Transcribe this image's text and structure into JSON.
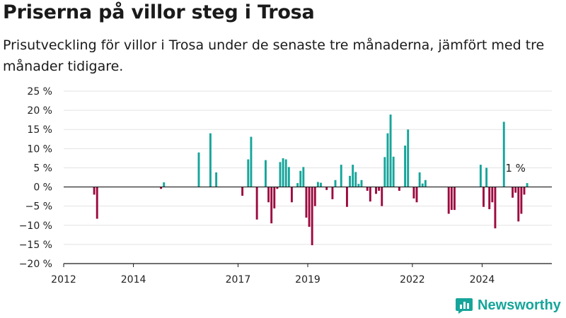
{
  "header": {
    "title": "Priserna på villor steg i Trosa",
    "subtitle": "Prisutveckling för villor i Trosa under de senaste tre månaderna, jämfört med tre månader tidigare."
  },
  "brand": {
    "name": "Newsworthy",
    "icon": "newsworthy-logo-icon",
    "color": "#16a59a"
  },
  "chart_data": {
    "type": "bar",
    "title": "Priserna på villor steg i Trosa",
    "subtitle": "Prisutveckling för villor i Trosa under de senaste tre månaderna, jämfört med tre månader tidigare.",
    "xlabel": "",
    "ylabel": "",
    "unit": "%",
    "ylim": [
      -20,
      25
    ],
    "xlim": [
      "2012-01",
      "2025-12"
    ],
    "y_ticks": [
      {
        "value": 25,
        "label": "25 %"
      },
      {
        "value": 20,
        "label": "20 %"
      },
      {
        "value": 15,
        "label": "15 %"
      },
      {
        "value": 10,
        "label": "10 %"
      },
      {
        "value": 5,
        "label": "5 %"
      },
      {
        "value": 0,
        "label": "0 %"
      },
      {
        "value": -5,
        "label": "−5 %"
      },
      {
        "value": -10,
        "label": "−10 %"
      },
      {
        "value": -15,
        "label": "−15 %"
      },
      {
        "value": -20,
        "label": "−20 %"
      }
    ],
    "x_ticks": [
      {
        "value": "2012-01",
        "label": "2012"
      },
      {
        "value": "2014-01",
        "label": "2014"
      },
      {
        "value": "2017-01",
        "label": "2017"
      },
      {
        "value": "2019-01",
        "label": "2019"
      },
      {
        "value": "2022-01",
        "label": "2022"
      },
      {
        "value": "2024-01",
        "label": "2024"
      }
    ],
    "grid": true,
    "colors": {
      "positive": "#16a59a",
      "negative": "#9c0a3f"
    },
    "annotation": {
      "text": "1 %",
      "at": "2024-12"
    },
    "series": [
      {
        "data": [
          {
            "x": "2012-01",
            "y": 0
          },
          {
            "x": "2012-02",
            "y": 0
          },
          {
            "x": "2012-03",
            "y": 0
          },
          {
            "x": "2012-04",
            "y": 0
          },
          {
            "x": "2012-05",
            "y": 0
          },
          {
            "x": "2012-06",
            "y": 0
          },
          {
            "x": "2012-07",
            "y": 0
          },
          {
            "x": "2012-08",
            "y": 0
          },
          {
            "x": "2012-09",
            "y": 0
          },
          {
            "x": "2012-10",
            "y": 0
          },
          {
            "x": "2012-11",
            "y": -2
          },
          {
            "x": "2012-12",
            "y": -8.3
          },
          {
            "x": "2013-01",
            "y": 0
          },
          {
            "x": "2013-02",
            "y": 0
          },
          {
            "x": "2013-03",
            "y": 0
          },
          {
            "x": "2013-04",
            "y": 0
          },
          {
            "x": "2013-05",
            "y": 0
          },
          {
            "x": "2013-06",
            "y": 0
          },
          {
            "x": "2013-07",
            "y": 0
          },
          {
            "x": "2013-08",
            "y": 0
          },
          {
            "x": "2013-09",
            "y": 0
          },
          {
            "x": "2013-10",
            "y": 0
          },
          {
            "x": "2013-11",
            "y": 0
          },
          {
            "x": "2013-12",
            "y": 0
          },
          {
            "x": "2014-01",
            "y": 0
          },
          {
            "x": "2014-02",
            "y": 0
          },
          {
            "x": "2014-03",
            "y": 0
          },
          {
            "x": "2014-04",
            "y": 0
          },
          {
            "x": "2014-05",
            "y": 0
          },
          {
            "x": "2014-06",
            "y": 0
          },
          {
            "x": "2014-07",
            "y": 0
          },
          {
            "x": "2014-08",
            "y": 0
          },
          {
            "x": "2014-09",
            "y": 0
          },
          {
            "x": "2014-10",
            "y": -0.5
          },
          {
            "x": "2014-11",
            "y": 1.2
          },
          {
            "x": "2014-12",
            "y": 0
          },
          {
            "x": "2015-01",
            "y": 0
          },
          {
            "x": "2015-02",
            "y": 0
          },
          {
            "x": "2015-03",
            "y": 0
          },
          {
            "x": "2015-04",
            "y": 0
          },
          {
            "x": "2015-05",
            "y": 0
          },
          {
            "x": "2015-06",
            "y": 0
          },
          {
            "x": "2015-07",
            "y": 0
          },
          {
            "x": "2015-08",
            "y": 0
          },
          {
            "x": "2015-09",
            "y": 0
          },
          {
            "x": "2015-10",
            "y": 0
          },
          {
            "x": "2015-11",
            "y": 9
          },
          {
            "x": "2015-12",
            "y": 0
          },
          {
            "x": "2016-01",
            "y": 0
          },
          {
            "x": "2016-02",
            "y": 0
          },
          {
            "x": "2016-03",
            "y": 14
          },
          {
            "x": "2016-04",
            "y": 0
          },
          {
            "x": "2016-05",
            "y": 3.8
          },
          {
            "x": "2016-06",
            "y": 0
          },
          {
            "x": "2016-07",
            "y": 0
          },
          {
            "x": "2016-08",
            "y": 0
          },
          {
            "x": "2016-09",
            "y": 0
          },
          {
            "x": "2016-10",
            "y": 0
          },
          {
            "x": "2016-11",
            "y": 0
          },
          {
            "x": "2016-12",
            "y": 0
          },
          {
            "x": "2017-01",
            "y": 0
          },
          {
            "x": "2017-02",
            "y": -2.3
          },
          {
            "x": "2017-03",
            "y": 0
          },
          {
            "x": "2017-04",
            "y": 7.2
          },
          {
            "x": "2017-05",
            "y": 13.1
          },
          {
            "x": "2017-06",
            "y": 0
          },
          {
            "x": "2017-07",
            "y": -8.5
          },
          {
            "x": "2017-08",
            "y": 0
          },
          {
            "x": "2017-09",
            "y": 0
          },
          {
            "x": "2017-10",
            "y": 7
          },
          {
            "x": "2017-11",
            "y": -4
          },
          {
            "x": "2017-12",
            "y": -9.5
          },
          {
            "x": "2018-01",
            "y": -5.6
          },
          {
            "x": "2018-02",
            "y": -0.5
          },
          {
            "x": "2018-03",
            "y": 6.5
          },
          {
            "x": "2018-04",
            "y": 7.5
          },
          {
            "x": "2018-05",
            "y": 7.2
          },
          {
            "x": "2018-06",
            "y": 5.2
          },
          {
            "x": "2018-07",
            "y": -4
          },
          {
            "x": "2018-08",
            "y": 0
          },
          {
            "x": "2018-09",
            "y": 1
          },
          {
            "x": "2018-10",
            "y": 4.2
          },
          {
            "x": "2018-11",
            "y": 5.2
          },
          {
            "x": "2018-12",
            "y": -8
          },
          {
            "x": "2019-01",
            "y": -10.4
          },
          {
            "x": "2019-02",
            "y": -15.2
          },
          {
            "x": "2019-03",
            "y": -5
          },
          {
            "x": "2019-04",
            "y": 1.3
          },
          {
            "x": "2019-05",
            "y": 1.1
          },
          {
            "x": "2019-06",
            "y": 0
          },
          {
            "x": "2019-07",
            "y": -0.8
          },
          {
            "x": "2019-08",
            "y": 0
          },
          {
            "x": "2019-09",
            "y": -3.2
          },
          {
            "x": "2019-10",
            "y": 1.8
          },
          {
            "x": "2019-11",
            "y": 0
          },
          {
            "x": "2019-12",
            "y": 5.8
          },
          {
            "x": "2020-01",
            "y": 0
          },
          {
            "x": "2020-02",
            "y": -5.2
          },
          {
            "x": "2020-03",
            "y": 2.9
          },
          {
            "x": "2020-04",
            "y": 5.8
          },
          {
            "x": "2020-05",
            "y": 3.9
          },
          {
            "x": "2020-06",
            "y": 0.8
          },
          {
            "x": "2020-07",
            "y": 1.8
          },
          {
            "x": "2020-08",
            "y": 0
          },
          {
            "x": "2020-09",
            "y": -1
          },
          {
            "x": "2020-10",
            "y": -3.8
          },
          {
            "x": "2020-11",
            "y": 0
          },
          {
            "x": "2020-12",
            "y": -1.8
          },
          {
            "x": "2021-01",
            "y": -1
          },
          {
            "x": "2021-02",
            "y": -5
          },
          {
            "x": "2021-03",
            "y": 7.8
          },
          {
            "x": "2021-04",
            "y": 14
          },
          {
            "x": "2021-05",
            "y": 18.9
          },
          {
            "x": "2021-06",
            "y": 7.9
          },
          {
            "x": "2021-07",
            "y": 0
          },
          {
            "x": "2021-08",
            "y": -1
          },
          {
            "x": "2021-09",
            "y": 0
          },
          {
            "x": "2021-10",
            "y": 10.8
          },
          {
            "x": "2021-11",
            "y": 15
          },
          {
            "x": "2021-12",
            "y": 0
          },
          {
            "x": "2022-01",
            "y": -3
          },
          {
            "x": "2022-02",
            "y": -4
          },
          {
            "x": "2022-03",
            "y": 3.8
          },
          {
            "x": "2022-04",
            "y": 0.9
          },
          {
            "x": "2022-05",
            "y": 1.8
          },
          {
            "x": "2022-06",
            "y": 0
          },
          {
            "x": "2022-07",
            "y": 0
          },
          {
            "x": "2022-08",
            "y": 0
          },
          {
            "x": "2022-09",
            "y": 0
          },
          {
            "x": "2022-10",
            "y": 0
          },
          {
            "x": "2022-11",
            "y": 0
          },
          {
            "x": "2022-12",
            "y": 0
          },
          {
            "x": "2023-01",
            "y": -7
          },
          {
            "x": "2023-02",
            "y": -6
          },
          {
            "x": "2023-03",
            "y": -6
          },
          {
            "x": "2023-04",
            "y": 0
          },
          {
            "x": "2023-05",
            "y": 0
          },
          {
            "x": "2023-06",
            "y": 0
          },
          {
            "x": "2023-07",
            "y": 0
          },
          {
            "x": "2023-08",
            "y": 0
          },
          {
            "x": "2023-09",
            "y": 0
          },
          {
            "x": "2023-10",
            "y": 0
          },
          {
            "x": "2023-11",
            "y": 0
          },
          {
            "x": "2023-12",
            "y": 5.8
          },
          {
            "x": "2024-01",
            "y": -5.2
          },
          {
            "x": "2024-02",
            "y": 5
          },
          {
            "x": "2024-03",
            "y": -5.8
          },
          {
            "x": "2024-04",
            "y": -4
          },
          {
            "x": "2024-05",
            "y": -10.8
          },
          {
            "x": "2024-06",
            "y": 0
          },
          {
            "x": "2024-07",
            "y": 0
          },
          {
            "x": "2024-08",
            "y": 17
          },
          {
            "x": "2024-09",
            "y": 0
          },
          {
            "x": "2024-10",
            "y": 0
          },
          {
            "x": "2024-11",
            "y": -2.8
          },
          {
            "x": "2024-12",
            "y": -1.5
          },
          {
            "x": "2025-01",
            "y": -9
          },
          {
            "x": "2025-02",
            "y": -7
          },
          {
            "x": "2025-03",
            "y": -2
          },
          {
            "x": "2025-04",
            "y": 1
          }
        ]
      }
    ]
  }
}
